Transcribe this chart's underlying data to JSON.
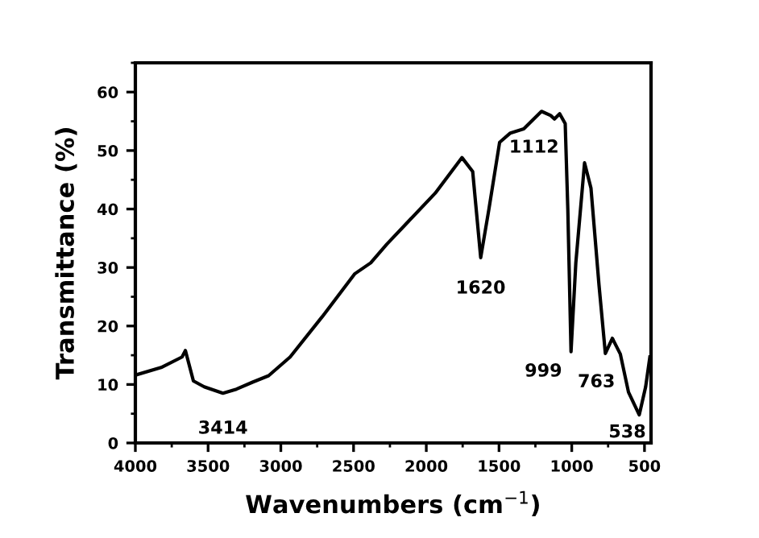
{
  "chart_data": {
    "type": "line",
    "xlabel": "Wavenumbers (cm$^{−1}$)",
    "ylabel": "Transmittance (%)",
    "xlim": [
      4000,
      455
    ],
    "ylim": [
      0,
      65
    ],
    "xticks": [
      4000,
      3500,
      3000,
      2500,
      2000,
      1500,
      1000,
      500
    ],
    "yticks": [
      0,
      10,
      20,
      30,
      40,
      50,
      60
    ],
    "grid": false,
    "legend": false,
    "marker": "none",
    "line_style": "solid",
    "series": [
      {
        "color": "#000000",
        "x": [
          4000,
          3823,
          3679,
          3656,
          3601,
          3527,
          3398,
          3305,
          3194,
          3084,
          2936,
          2715,
          2493,
          2382,
          2271,
          1939,
          1755,
          1681,
          1626,
          1570,
          1496,
          1422,
          1330,
          1208,
          1145,
          1119,
          1083,
          1045,
          1027,
          1005,
          972,
          912,
          868,
          813,
          769,
          721,
          666,
          610,
          536,
          492,
          463
        ],
        "values": [
          11.6,
          12.9,
          14.7,
          15.8,
          10.6,
          9.6,
          8.5,
          9.2,
          10.4,
          11.5,
          14.7,
          21.6,
          28.9,
          30.8,
          34,
          42.7,
          48.8,
          46.4,
          31.7,
          39.9,
          51.4,
          53,
          53.7,
          56.7,
          56,
          55.4,
          56.3,
          54.6,
          39.9,
          15.6,
          30.8,
          47.9,
          43.6,
          27.1,
          15.3,
          17.9,
          15.2,
          8.7,
          4.8,
          9.6,
          14.7
        ]
      }
    ],
    "annotations": [
      {
        "text": "3414",
        "x": 3398,
        "y": 8.5
      },
      {
        "text": "1620",
        "x": 1626,
        "y": 31.7
      },
      {
        "text": "1112",
        "x": 1119,
        "y": 55.4
      },
      {
        "text": "999",
        "x": 1005,
        "y": 15.6
      },
      {
        "text": "763",
        "x": 769,
        "y": 15.3
      },
      {
        "text": "538",
        "x": 536,
        "y": 4.8
      }
    ]
  }
}
